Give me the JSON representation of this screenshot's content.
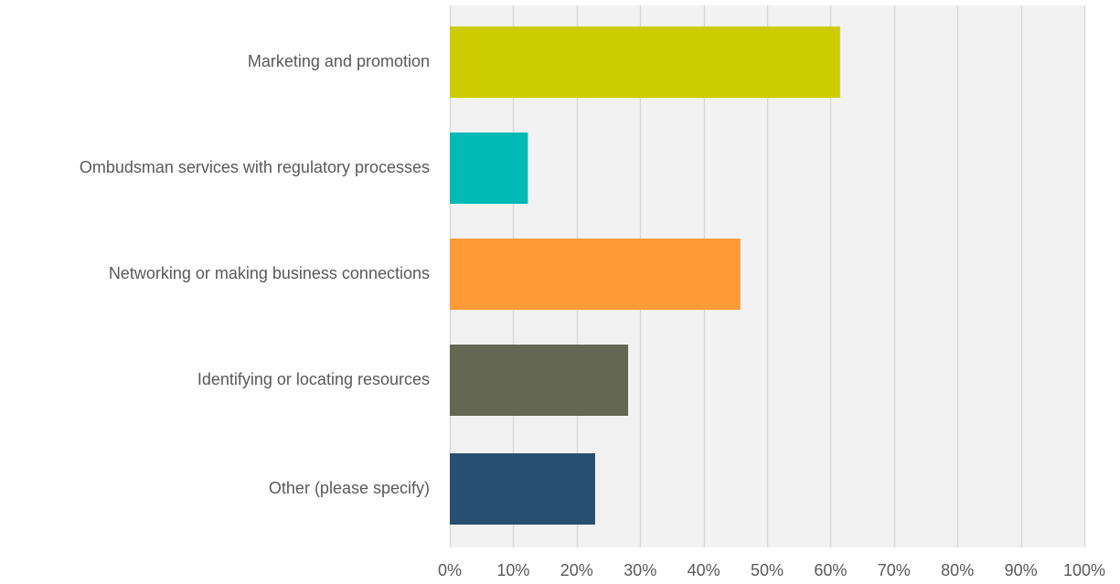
{
  "chart_data": {
    "type": "bar",
    "orientation": "horizontal",
    "categories": [
      "Marketing and promotion",
      "Ombudsman services with regulatory processes",
      "Networking or making business connections ",
      "Identifying or locating resources",
      "Other (please specify)"
    ],
    "values": [
      61.5,
      12.3,
      45.8,
      28.1,
      22.9
    ],
    "value_unit": "%",
    "colors": [
      "#cccc00",
      "#00bab6",
      "#ff9b37",
      "#646753",
      "#274f72"
    ],
    "xlim": [
      0,
      100
    ],
    "x_ticks": [
      0,
      10,
      20,
      30,
      40,
      50,
      60,
      70,
      80,
      90,
      100
    ],
    "x_tick_labels": [
      "0%",
      "10%",
      "20%",
      "30%",
      "40%",
      "50%",
      "60%",
      "70%",
      "80%",
      "90%",
      "100%"
    ],
    "grid": true,
    "plot_background": "#f2f2f2",
    "gridline_color": "#d9d9d9",
    "title": "",
    "xlabel": "",
    "ylabel": ""
  }
}
